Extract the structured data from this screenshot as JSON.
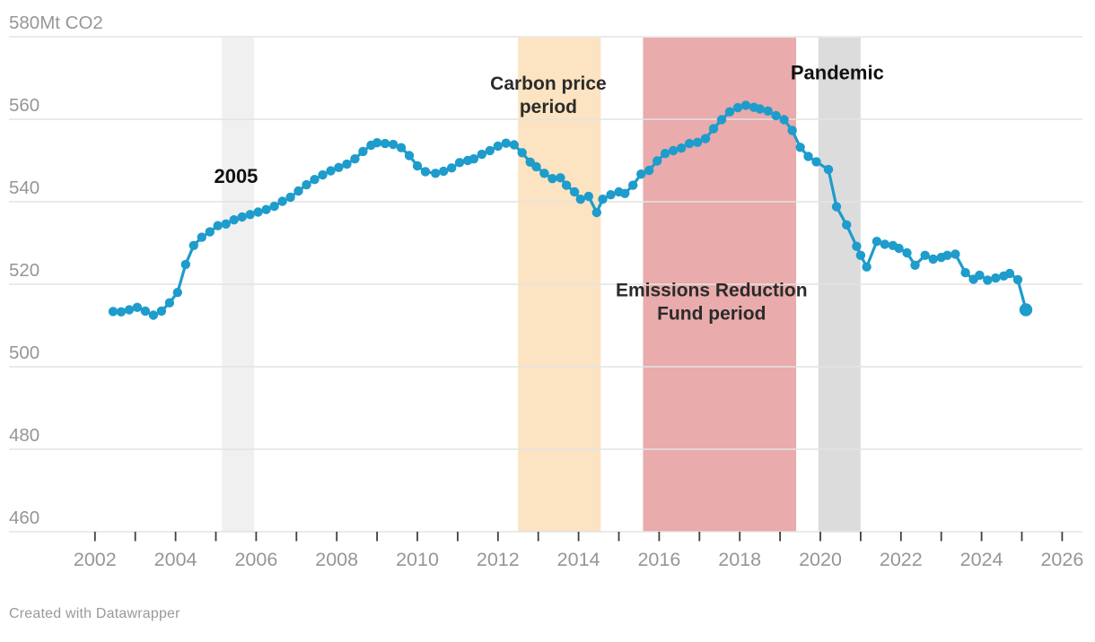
{
  "footer": {
    "credit": "Created with Datawrapper"
  },
  "colors": {
    "line": "#1e9ccb",
    "grid": "#e3e3e3",
    "tick": "#3f3f3f",
    "axis_text": "#969696",
    "band_2005": "#f0f0f0",
    "band_carbon_price": "#fce3c1",
    "band_erf": "#e9abab",
    "band_pandemic": "#dcdcdc",
    "annotation_dark": "#111111",
    "annotation_soft": "#2b2b2b"
  },
  "chart_data": {
    "type": "line",
    "title": "",
    "unit_label": "580Mt CO2",
    "grid": true,
    "legend": "none",
    "x_axis": {
      "min": 2002,
      "max": 2026,
      "tick_interval": 1,
      "labels": [
        {
          "year": 2002,
          "text": "2002"
        },
        {
          "year": 2004,
          "text": "2004"
        },
        {
          "year": 2006,
          "text": "2006"
        },
        {
          "year": 2008,
          "text": "2008"
        },
        {
          "year": 2010,
          "text": "2010"
        },
        {
          "year": 2012,
          "text": "2012"
        },
        {
          "year": 2014,
          "text": "2014"
        },
        {
          "year": 2016,
          "text": "2016"
        },
        {
          "year": 2018,
          "text": "2018"
        },
        {
          "year": 2020,
          "text": "2020"
        },
        {
          "year": 2022,
          "text": "2022"
        },
        {
          "year": 2024,
          "text": "2024"
        },
        {
          "year": 2026,
          "text": "2026"
        }
      ]
    },
    "y_axis": {
      "min": 460,
      "max": 580,
      "ticks": [
        {
          "value": 580,
          "label": "580Mt CO2"
        },
        {
          "value": 560,
          "label": "560"
        },
        {
          "value": 540,
          "label": "540"
        },
        {
          "value": 520,
          "label": "520"
        },
        {
          "value": 500,
          "label": "500"
        },
        {
          "value": 480,
          "label": "480"
        },
        {
          "value": 460,
          "label": "460"
        }
      ]
    },
    "bands": [
      {
        "id": "band-2005",
        "from": 2005.15,
        "to": 2005.95,
        "color": "#f0f0f0"
      },
      {
        "id": "band-carbon-price",
        "from": 2012.5,
        "to": 2014.55,
        "color": "#fce3c1"
      },
      {
        "id": "band-erf",
        "from": 2015.6,
        "to": 2019.4,
        "color": "#e9abab"
      },
      {
        "id": "band-pandemic",
        "from": 2019.95,
        "to": 2021.0,
        "color": "#dcdcdc"
      }
    ],
    "annotations": [
      {
        "id": "label-2005",
        "lines": [
          "2005"
        ],
        "year": 2005.5,
        "value": 546.2,
        "color": "#111111",
        "size": 22
      },
      {
        "id": "label-carbon-price",
        "lines": [
          "Carbon price",
          "period"
        ],
        "year": 2013.25,
        "value": 566.0,
        "color": "#2b2b2b",
        "size": 21
      },
      {
        "id": "label-erf",
        "lines": [
          "Emissions Reduction",
          "Fund period"
        ],
        "year": 2017.3,
        "value": 515.8,
        "color": "#2b2b2b",
        "size": 21
      },
      {
        "id": "label-pandemic",
        "lines": [
          "Pandemic"
        ],
        "year": 2020.42,
        "value": 571.4,
        "color": "#111111",
        "size": 22
      }
    ],
    "series": [
      {
        "id": "emissions-series",
        "color": "#1e9ccb",
        "points": [
          [
            2002.45,
            513.4
          ],
          [
            2002.65,
            513.3
          ],
          [
            2002.85,
            513.8
          ],
          [
            2003.05,
            514.4
          ],
          [
            2003.25,
            513.5
          ],
          [
            2003.45,
            512.5
          ],
          [
            2003.65,
            513.5
          ],
          [
            2003.85,
            515.5
          ],
          [
            2004.05,
            518.0
          ],
          [
            2004.25,
            524.8
          ],
          [
            2004.45,
            529.4
          ],
          [
            2004.65,
            531.4
          ],
          [
            2004.85,
            532.7
          ],
          [
            2005.05,
            534.2
          ],
          [
            2005.25,
            534.6
          ],
          [
            2005.45,
            535.6
          ],
          [
            2005.65,
            536.3
          ],
          [
            2005.85,
            536.9
          ],
          [
            2006.05,
            537.5
          ],
          [
            2006.25,
            538.1
          ],
          [
            2006.45,
            538.9
          ],
          [
            2006.65,
            540.1
          ],
          [
            2006.85,
            541.1
          ],
          [
            2007.05,
            542.6
          ],
          [
            2007.25,
            544.1
          ],
          [
            2007.45,
            545.4
          ],
          [
            2007.65,
            546.5
          ],
          [
            2007.85,
            547.5
          ],
          [
            2008.05,
            548.3
          ],
          [
            2008.25,
            549.1
          ],
          [
            2008.45,
            550.4
          ],
          [
            2008.65,
            552.2
          ],
          [
            2008.85,
            553.7
          ],
          [
            2009.0,
            554.3
          ],
          [
            2009.2,
            554.1
          ],
          [
            2009.4,
            553.9
          ],
          [
            2009.6,
            553.1
          ],
          [
            2009.8,
            551.2
          ],
          [
            2010.0,
            548.7
          ],
          [
            2010.2,
            547.3
          ],
          [
            2010.45,
            546.9
          ],
          [
            2010.65,
            547.4
          ],
          [
            2010.85,
            548.2
          ],
          [
            2011.05,
            549.5
          ],
          [
            2011.25,
            550.0
          ],
          [
            2011.4,
            550.4
          ],
          [
            2011.6,
            551.5
          ],
          [
            2011.8,
            552.4
          ],
          [
            2012.0,
            553.5
          ],
          [
            2012.2,
            554.2
          ],
          [
            2012.4,
            553.8
          ],
          [
            2012.6,
            551.9
          ],
          [
            2012.8,
            549.6
          ],
          [
            2012.95,
            548.5
          ],
          [
            2013.15,
            546.9
          ],
          [
            2013.35,
            545.6
          ],
          [
            2013.55,
            545.8
          ],
          [
            2013.7,
            544.0
          ],
          [
            2013.9,
            542.4
          ],
          [
            2014.05,
            540.6
          ],
          [
            2014.25,
            541.3
          ],
          [
            2014.45,
            537.4
          ],
          [
            2014.6,
            540.6
          ],
          [
            2014.8,
            541.7
          ],
          [
            2015.0,
            542.4
          ],
          [
            2015.15,
            542.0
          ],
          [
            2015.35,
            544.0
          ],
          [
            2015.55,
            546.7
          ],
          [
            2015.75,
            547.6
          ],
          [
            2015.95,
            549.9
          ],
          [
            2016.15,
            551.7
          ],
          [
            2016.35,
            552.4
          ],
          [
            2016.55,
            553.0
          ],
          [
            2016.75,
            554.1
          ],
          [
            2016.95,
            554.4
          ],
          [
            2017.15,
            555.3
          ],
          [
            2017.35,
            557.7
          ],
          [
            2017.55,
            559.9
          ],
          [
            2017.75,
            561.8
          ],
          [
            2017.95,
            562.8
          ],
          [
            2018.15,
            563.4
          ],
          [
            2018.35,
            562.9
          ],
          [
            2018.5,
            562.5
          ],
          [
            2018.7,
            562.0
          ],
          [
            2018.9,
            560.9
          ],
          [
            2019.1,
            559.9
          ],
          [
            2019.3,
            557.3
          ],
          [
            2019.5,
            553.2
          ],
          [
            2019.7,
            551.0
          ],
          [
            2019.9,
            549.7
          ],
          [
            2020.2,
            547.8
          ],
          [
            2020.4,
            538.8
          ],
          [
            2020.65,
            534.4
          ],
          [
            2020.9,
            529.2
          ],
          [
            2021.0,
            527.0
          ],
          [
            2021.15,
            524.2
          ],
          [
            2021.4,
            530.4
          ],
          [
            2021.6,
            529.7
          ],
          [
            2021.8,
            529.4
          ],
          [
            2021.95,
            528.7
          ],
          [
            2022.15,
            527.6
          ],
          [
            2022.35,
            524.6
          ],
          [
            2022.6,
            527.0
          ],
          [
            2022.8,
            526.1
          ],
          [
            2023.0,
            526.5
          ],
          [
            2023.15,
            527.0
          ],
          [
            2023.35,
            527.3
          ],
          [
            2023.6,
            522.8
          ],
          [
            2023.8,
            521.2
          ],
          [
            2023.95,
            522.2
          ],
          [
            2024.15,
            521.0
          ],
          [
            2024.35,
            521.5
          ],
          [
            2024.55,
            522.0
          ],
          [
            2024.7,
            522.6
          ],
          [
            2024.9,
            521.1
          ],
          [
            2025.1,
            513.8
          ]
        ]
      }
    ]
  }
}
